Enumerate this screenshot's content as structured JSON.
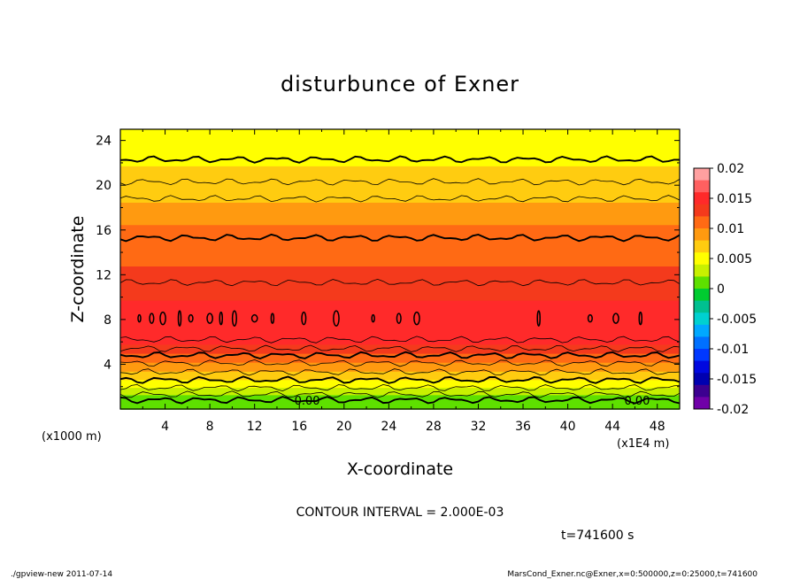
{
  "chart_data": {
    "type": "heatmap",
    "title": "disturbunce of Exner",
    "xlabel": "X-coordinate",
    "ylabel": "Z-coordinate",
    "x_unit": "(x1E4 m)",
    "y_unit": "(x1000 m)",
    "x_ticks": [
      4,
      8,
      12,
      16,
      20,
      24,
      28,
      32,
      36,
      40,
      44,
      48
    ],
    "y_ticks": [
      4,
      8,
      12,
      16,
      20,
      24
    ],
    "xlim": [
      0,
      50
    ],
    "ylim": [
      0,
      25
    ],
    "colorbar": {
      "ticks": [
        "0.02",
        "0.015",
        "0.01",
        "0.005",
        "0",
        "-0.005",
        "-0.01",
        "-0.015",
        "-0.02"
      ],
      "min": -0.02,
      "max": 0.02,
      "levels": [
        {
          "value": 0.019,
          "color": "#ffa0a0"
        },
        {
          "value": 0.017,
          "color": "#ff6060"
        },
        {
          "value": 0.015,
          "color": "#ff2a2a"
        },
        {
          "value": 0.013,
          "color": "#f43a1c"
        },
        {
          "value": 0.011,
          "color": "#ff6a14"
        },
        {
          "value": 0.009,
          "color": "#ff9a10"
        },
        {
          "value": 0.007,
          "color": "#ffcc10"
        },
        {
          "value": 0.005,
          "color": "#ffff00"
        },
        {
          "value": 0.003,
          "color": "#c8f000"
        },
        {
          "value": 0.001,
          "color": "#5ee000"
        },
        {
          "value": -0.001,
          "color": "#00cc30"
        },
        {
          "value": -0.003,
          "color": "#00c090"
        },
        {
          "value": -0.005,
          "color": "#00d0d0"
        },
        {
          "value": -0.007,
          "color": "#00a8ff"
        },
        {
          "value": -0.009,
          "color": "#0070ff"
        },
        {
          "value": -0.011,
          "color": "#0038ff"
        },
        {
          "value": -0.013,
          "color": "#0008e0"
        },
        {
          "value": -0.015,
          "color": "#0000b0"
        },
        {
          "value": -0.017,
          "color": "#3c0090"
        },
        {
          "value": -0.019,
          "color": "#7000a8"
        }
      ]
    },
    "field": [
      {
        "z": 0.3,
        "value": 0.0002
      },
      {
        "z": 1.0,
        "value": 0.0015
      },
      {
        "z": 1.6,
        "value": 0.003
      },
      {
        "z": 2.3,
        "value": 0.0048
      },
      {
        "z": 3.0,
        "value": 0.0065
      },
      {
        "z": 3.8,
        "value": 0.0085
      },
      {
        "z": 4.6,
        "value": 0.0105
      },
      {
        "z": 5.4,
        "value": 0.0125
      },
      {
        "z": 6.2,
        "value": 0.014
      },
      {
        "z": 7.0,
        "value": 0.0148
      },
      {
        "z": 8.0,
        "value": 0.0153
      },
      {
        "z": 9.0,
        "value": 0.0148
      },
      {
        "z": 10.5,
        "value": 0.0138
      },
      {
        "z": 12.0,
        "value": 0.0128
      },
      {
        "z": 13.6,
        "value": 0.0118
      },
      {
        "z": 15.5,
        "value": 0.0105
      },
      {
        "z": 17.5,
        "value": 0.009
      },
      {
        "z": 19.5,
        "value": 0.0075
      },
      {
        "z": 21.0,
        "value": 0.0065
      },
      {
        "z": 22.5,
        "value": 0.0055
      },
      {
        "z": 24.0,
        "value": 0.0045
      },
      {
        "z": 25.0,
        "value": 0.0042
      }
    ],
    "contours": [
      {
        "z": 0.8,
        "bold": true
      },
      {
        "z": 1.3,
        "bold": false
      },
      {
        "z": 1.9,
        "bold": false
      },
      {
        "z": 2.6,
        "bold": true
      },
      {
        "z": 3.3,
        "bold": false
      },
      {
        "z": 4.1,
        "bold": false
      },
      {
        "z": 4.8,
        "bold": true
      },
      {
        "z": 5.4,
        "bold": false
      },
      {
        "z": 6.2,
        "bold": false
      },
      {
        "z": 11.3,
        "bold": false
      },
      {
        "z": 15.3,
        "bold": true
      },
      {
        "z": 18.8,
        "bold": false
      },
      {
        "z": 20.3,
        "bold": false
      },
      {
        "z": 22.3,
        "bold": true
      }
    ],
    "cells_x": [
      1.7,
      2.8,
      3.8,
      5.3,
      6.3,
      8.0,
      9.0,
      10.2,
      12.0,
      13.6,
      16.4,
      19.3,
      22.6,
      24.9,
      26.5,
      37.4,
      42.0,
      44.3,
      46.5
    ],
    "contour_labels": [
      {
        "x": 16.7,
        "z": 0.7,
        "text": "0.00"
      },
      {
        "x": 46.2,
        "z": 0.7,
        "text": "0.00"
      }
    ],
    "contour_interval": "CONTOUR INTERVAL = 2.000E-03",
    "time": "t=741600 s",
    "footer_left": "./gpview-new   2011-07-14",
    "footer_right": "MarsCond_Exner.nc@Exner,x=0:500000,z=0:25000,t=741600"
  }
}
